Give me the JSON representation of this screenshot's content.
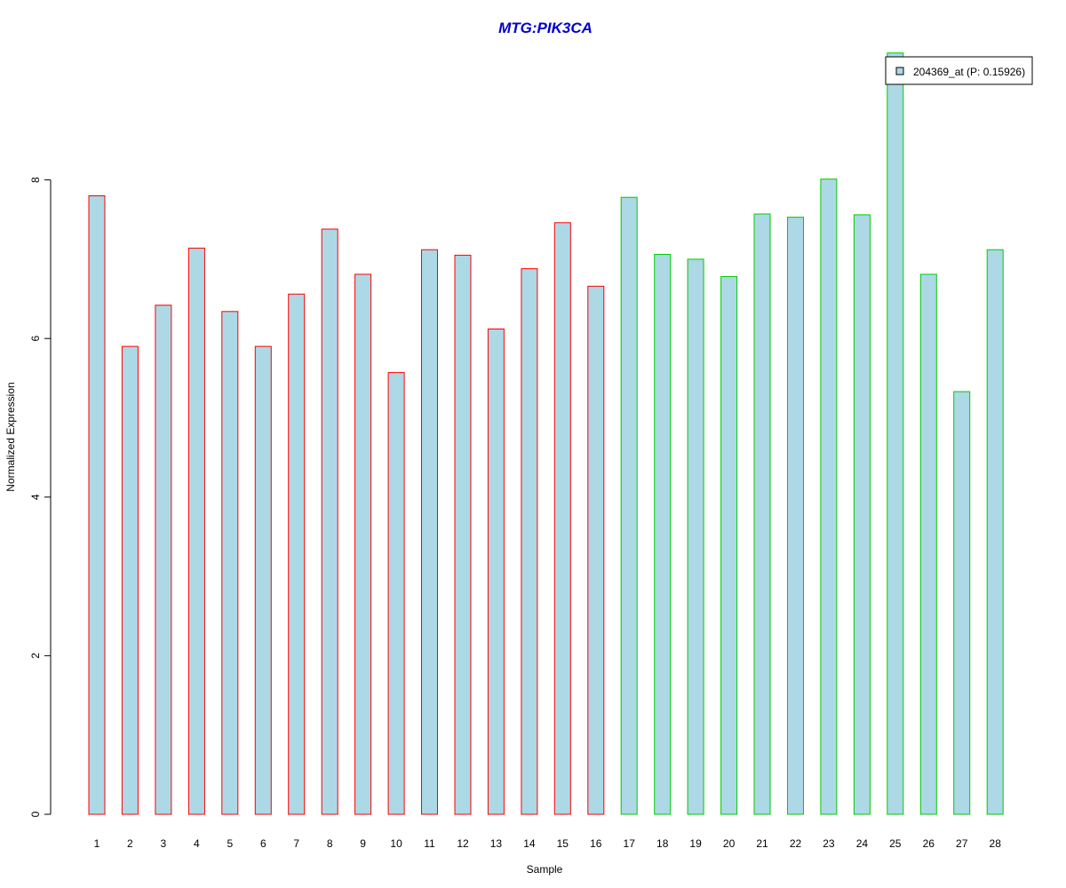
{
  "chart_data": {
    "type": "bar",
    "title": "MTG:PIK3CA",
    "xlabel": "Sample",
    "ylabel": "Normalized Expression",
    "ylim": [
      0,
      9.6
    ],
    "yticks": [
      0,
      2,
      4,
      6,
      8
    ],
    "categories": [
      "1",
      "2",
      "3",
      "4",
      "5",
      "6",
      "7",
      "8",
      "9",
      "10",
      "11",
      "12",
      "13",
      "14",
      "15",
      "16",
      "17",
      "18",
      "19",
      "20",
      "21",
      "22",
      "23",
      "24",
      "25",
      "26",
      "27",
      "28"
    ],
    "series": [
      {
        "name": "204369_at (P: 0.15926)",
        "values": [
          7.8,
          5.9,
          6.42,
          7.14,
          6.34,
          5.9,
          6.56,
          7.38,
          6.81,
          5.57,
          7.12,
          7.05,
          6.12,
          6.88,
          7.46,
          6.66,
          7.78,
          7.06,
          7.0,
          6.78,
          7.57,
          7.53,
          8.01,
          7.56,
          9.6,
          6.81,
          5.33,
          7.12
        ]
      }
    ],
    "groups": [
      {
        "range": [
          1,
          16
        ],
        "border_color": "#ff0000"
      },
      {
        "range": [
          17,
          28
        ],
        "border_color": "#00cc00"
      }
    ],
    "bar_fill": "#add8e6",
    "title_color": "#0000cc",
    "legend_position": "top-right",
    "grid": false
  }
}
